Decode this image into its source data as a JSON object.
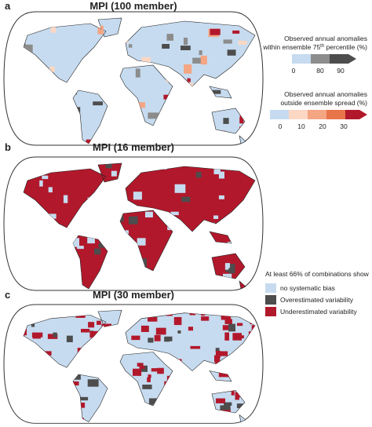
{
  "panels": [
    {
      "label": "a",
      "title": "MPI (100 member)"
    },
    {
      "label": "b",
      "title": "MPI (16 member)"
    },
    {
      "label": "c",
      "title": "MPI (30 member)"
    }
  ],
  "legend_within": {
    "title_line1": "Observed annual anomalies",
    "title_line2": "within ensemble 75",
    "title_sup": "th",
    "title_line2_end": " percentile (%)",
    "ticks": [
      0,
      80,
      90
    ]
  },
  "legend_outside": {
    "title_line1": "Observed annual anomalies",
    "title_line2": "outside ensemble spread (%)",
    "ticks": [
      0,
      10,
      20,
      30
    ]
  },
  "legend_bias": {
    "title": "At least 66% of combinations show",
    "items": [
      "no systematic bias",
      "Overestimated variability",
      "Underestimated variability"
    ]
  }
}
